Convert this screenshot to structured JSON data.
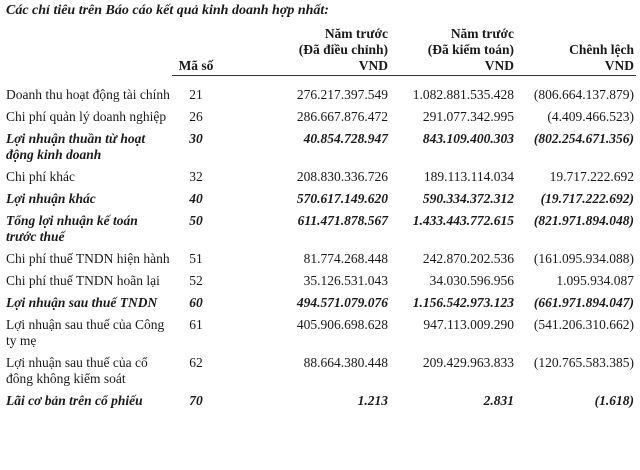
{
  "title": "Các chỉ tiêu trên Báo cáo kết quả kinh doanh hợp nhất:",
  "table": {
    "header": [
      [
        "Mã số"
      ],
      [
        "Năm trước",
        "(Đã điều chỉnh)",
        "VND"
      ],
      [
        "Năm trước",
        "(Đã kiểm toán)",
        "VND"
      ],
      [
        "Chênh lệch",
        "VND"
      ]
    ],
    "rows": [
      [
        "Doanh thu hoạt động tài chính",
        "21",
        "276.217.397.549",
        "1.082.881.535.428",
        "(806.664.137.879)"
      ],
      [
        "Chi phí quản lý doanh nghiệp",
        "26",
        "286.667.876.472",
        "291.077.342.995",
        "(4.409.466.523)"
      ],
      [
        "Lợi nhuận thuần từ hoạt động kinh doanh",
        "30",
        "40.854.728.947",
        "843.109.400.303",
        "(802.254.671.356)"
      ],
      [
        "Chi phí khác",
        "32",
        "208.830.336.726",
        "189.113.114.034",
        "19.717.222.692"
      ],
      [
        "Lợi nhuận khác",
        "40",
        "570.617.149.620",
        "590.334.372.312",
        "(19.717.222.692)"
      ],
      [
        "Tổng lợi nhuận kế toán trước thuế",
        "50",
        "611.471.878.567",
        "1.433.443.772.615",
        "(821.971.894.048)"
      ],
      [
        "Chi phí thuế TNDN hiện hành",
        "51",
        "81.774.268.448",
        "242.870.202.536",
        "(161.095.934.088)"
      ],
      [
        "Chi phí thuế TNDN hoãn lại",
        "52",
        "35.126.531.043",
        "34.030.596.956",
        "1.095.934.087"
      ],
      [
        "Lợi nhuận sau thuế TNDN",
        "60",
        "494.571.079.076",
        "1.156.542.973.123",
        "(661.971.894.047)"
      ],
      [
        "Lợi nhuận sau thuế của Công ty mẹ",
        "61",
        "405.906.698.628",
        "947.113.009.290",
        "(541.206.310.662)"
      ],
      [
        "Lợi nhuận sau thuế của cổ đông không kiểm soát",
        "62",
        "88.664.380.448",
        "209.429.963.833",
        "(120.765.583.385)"
      ],
      [
        "Lãi cơ bản trên cổ phiếu",
        "70",
        "1.213",
        "2.831",
        "(1.618)"
      ]
    ]
  }
}
